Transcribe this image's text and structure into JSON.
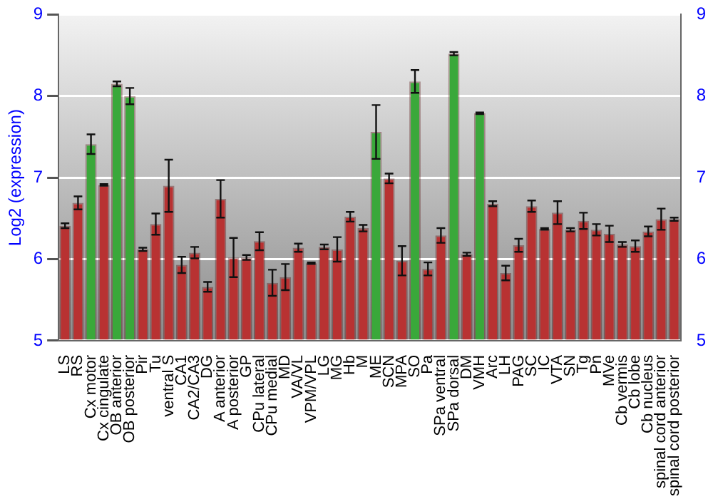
{
  "chart_data": {
    "type": "bar",
    "ylabel": "Log2 (expression)",
    "categories": [
      "LS",
      "RS",
      "Cx motor",
      "Cx cingulate",
      "OB anterior",
      "OB posterior",
      "Pir",
      "Tu",
      "ventral S",
      "CA1",
      "CA2/CA3",
      "DG",
      "A anterior",
      "A posterior",
      "GP",
      "CPu lateral",
      "CPu medial",
      "MD",
      "VA/VL",
      "VPM/VPL",
      "LG",
      "MG",
      "Hb",
      "M",
      "ME",
      "SCN",
      "MPA",
      "SO",
      "Pa",
      "SPa ventral",
      "SPa dorsal",
      "DM",
      "VMH",
      "Arc",
      "LH",
      "PAG",
      "SC",
      "IC",
      "VTA",
      "SN",
      "Tg",
      "Pn",
      "MVe",
      "Cb vermis",
      "Cb lobe",
      "Cb nucleus",
      "spinal cord anterior",
      "spinal cord posterior"
    ],
    "values": [
      6.41,
      6.69,
      7.41,
      6.91,
      8.15,
      8.0,
      6.12,
      6.43,
      6.9,
      5.93,
      6.08,
      5.66,
      6.74,
      6.02,
      6.02,
      6.22,
      5.71,
      5.78,
      6.14,
      5.95,
      6.15,
      6.12,
      6.52,
      6.38,
      7.56,
      6.99,
      5.98,
      8.18,
      5.88,
      6.29,
      8.52,
      6.06,
      7.79,
      6.68,
      5.83,
      6.17,
      6.65,
      6.37,
      6.57,
      6.36,
      6.47,
      6.36,
      6.31,
      6.18,
      6.16,
      6.34,
      6.49,
      6.49
    ],
    "errors": [
      0.03,
      0.08,
      0.12,
      0.01,
      0.03,
      0.1,
      0.02,
      0.13,
      0.32,
      0.1,
      0.07,
      0.06,
      0.23,
      0.24,
      0.03,
      0.11,
      0.16,
      0.16,
      0.05,
      0.01,
      0.03,
      0.15,
      0.06,
      0.04,
      0.33,
      0.06,
      0.18,
      0.14,
      0.08,
      0.09,
      0.02,
      0.02,
      0.01,
      0.03,
      0.09,
      0.08,
      0.07,
      0.01,
      0.14,
      0.02,
      0.1,
      0.07,
      0.1,
      0.03,
      0.07,
      0.06,
      0.13,
      0.02
    ],
    "colors": [
      "#b83232",
      "#b83232",
      "#3aa83a",
      "#b83232",
      "#3aa83a",
      "#3aa83a",
      "#b83232",
      "#b83232",
      "#b83232",
      "#b83232",
      "#b83232",
      "#b83232",
      "#b83232",
      "#b83232",
      "#b83232",
      "#b83232",
      "#b83232",
      "#b83232",
      "#b83232",
      "#b83232",
      "#b83232",
      "#b83232",
      "#b83232",
      "#b83232",
      "#3aa83a",
      "#b83232",
      "#b83232",
      "#3aa83a",
      "#b83232",
      "#b83232",
      "#3aa83a",
      "#b83232",
      "#3aa83a",
      "#b83232",
      "#b83232",
      "#b83232",
      "#b83232",
      "#b83232",
      "#b83232",
      "#b83232",
      "#b83232",
      "#b83232",
      "#b83232",
      "#b83232",
      "#b83232",
      "#b83232",
      "#b83232",
      "#b83232"
    ],
    "ylim": [
      5,
      9
    ],
    "yticks": [
      5,
      6,
      7,
      8,
      9
    ],
    "y2lim": [
      5,
      9
    ],
    "y2ticks": [
      5,
      6,
      7,
      8,
      9
    ],
    "grid": "y",
    "legend": false
  }
}
